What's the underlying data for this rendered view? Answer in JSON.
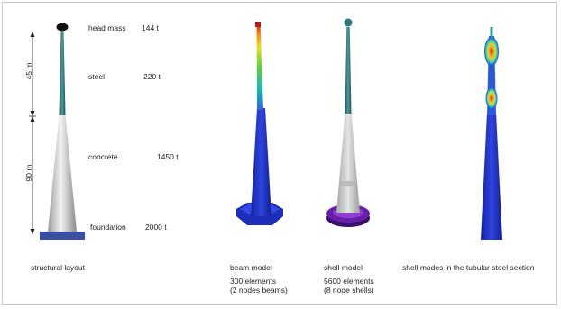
{
  "layout_labels": {
    "head_mass": {
      "name": "head mass",
      "value": "144 t"
    },
    "steel": {
      "name": "steel",
      "value": "220 t"
    },
    "concrete": {
      "name": "concrete",
      "value": "1450 t"
    },
    "foundation": {
      "name": "foundation",
      "value": "2000 t"
    },
    "dim_upper": "45 m",
    "dim_lower": "90 m"
  },
  "captions": {
    "structural": "structural layout",
    "beam": {
      "title": "beam model",
      "line1": "300 elements",
      "line2": "(2 nodes beams)"
    },
    "shell": {
      "title": "shell model",
      "line1": "5600 elements",
      "line2": "(8 node shells)"
    },
    "modes": "shell modes in the tubular steel section"
  },
  "colors": {
    "steel": "#2f6f73",
    "concrete_light": "#e6e6e6",
    "concrete_dark": "#8e8e8e",
    "foundation": "#3a4fa0",
    "beam_blue": "#1d2fb8",
    "shell_purple": "#6a1fa8"
  }
}
